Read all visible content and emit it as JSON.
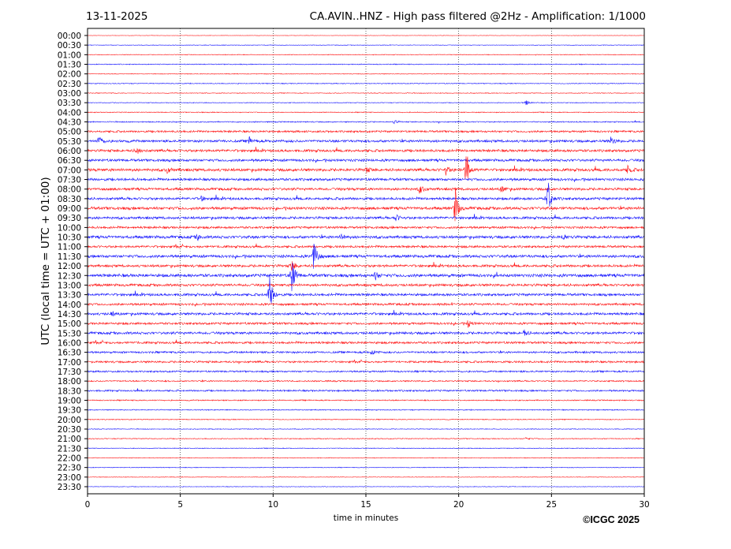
{
  "header": {
    "date": "13-11-2025",
    "title": "CA.AVIN..HNZ - High pass filtered @2Hz - Amplification: 1/1000"
  },
  "footer": {
    "copyright": "©ICGC 2025"
  },
  "chart_data": {
    "type": "line",
    "title": "CA.AVIN..HNZ - High pass filtered @2Hz - Amplification: 1/1000",
    "xlabel": "time in minutes",
    "ylabel": "UTC (local time = UTC + 01:00)",
    "xlim": [
      0,
      30
    ],
    "xticks": [
      "0",
      "5",
      "10",
      "15",
      "20",
      "25",
      "30"
    ],
    "grid": "vertical dotted",
    "colors": [
      "#ff0000",
      "#0000ff"
    ],
    "rows": [
      "00:00",
      "00:30",
      "01:00",
      "01:30",
      "02:00",
      "02:30",
      "03:00",
      "03:30",
      "04:00",
      "04:30",
      "05:00",
      "05:30",
      "06:00",
      "06:30",
      "07:00",
      "07:30",
      "08:00",
      "08:30",
      "09:00",
      "09:30",
      "10:00",
      "10:30",
      "11:00",
      "11:30",
      "12:00",
      "12:30",
      "13:00",
      "13:30",
      "14:00",
      "14:30",
      "15:00",
      "15:30",
      "16:00",
      "16:30",
      "17:00",
      "17:30",
      "18:00",
      "18:30",
      "19:00",
      "19:30",
      "20:00",
      "20:30",
      "21:00",
      "21:30",
      "22:00",
      "22:30",
      "23:00",
      "23:30"
    ],
    "noise_level": [
      0.3,
      0.4,
      0.5,
      0.6,
      0.5,
      0.6,
      0.5,
      0.5,
      0.6,
      0.8,
      1.4,
      1.8,
      1.8,
      1.8,
      2.0,
      1.8,
      1.8,
      1.8,
      2.0,
      1.8,
      1.6,
      2.0,
      1.6,
      2.0,
      1.8,
      2.2,
      1.8,
      1.8,
      1.6,
      1.8,
      1.6,
      1.8,
      1.6,
      1.4,
      1.4,
      1.2,
      1.0,
      1.2,
      0.8,
      0.7,
      0.6,
      0.5,
      0.6,
      0.5,
      0.5,
      0.5,
      0.4,
      0.4
    ],
    "events": [
      {
        "row": "03:30",
        "minute": 23.6,
        "amplitude": 4
      },
      {
        "row": "04:30",
        "minute": 16.5,
        "amplitude": 2.5
      },
      {
        "row": "05:30",
        "minute": 0.6,
        "amplitude": 8
      },
      {
        "row": "05:30",
        "minute": 8.7,
        "amplitude": 5
      },
      {
        "row": "05:30",
        "minute": 28.2,
        "amplitude": 5
      },
      {
        "row": "06:00",
        "minute": 2.6,
        "amplitude": 6
      },
      {
        "row": "07:00",
        "minute": 20.4,
        "amplitude": 30
      },
      {
        "row": "07:00",
        "minute": 19.3,
        "amplitude": 6
      },
      {
        "row": "07:00",
        "minute": 4.3,
        "amplitude": 4
      },
      {
        "row": "07:00",
        "minute": 15.0,
        "amplitude": 4
      },
      {
        "row": "07:00",
        "minute": 29.1,
        "amplitude": 5
      },
      {
        "row": "08:00",
        "minute": 17.9,
        "amplitude": 6
      },
      {
        "row": "08:00",
        "minute": 22.3,
        "amplitude": 5
      },
      {
        "row": "08:30",
        "minute": 24.8,
        "amplitude": 30
      },
      {
        "row": "08:30",
        "minute": 6.1,
        "amplitude": 4
      },
      {
        "row": "09:00",
        "minute": 19.8,
        "amplitude": 30
      },
      {
        "row": "09:30",
        "minute": 16.6,
        "amplitude": 5
      },
      {
        "row": "10:30",
        "minute": 5.9,
        "amplitude": 4
      },
      {
        "row": "10:30",
        "minute": 13.7,
        "amplitude": 5
      },
      {
        "row": "10:30",
        "minute": 25.6,
        "amplitude": 4
      },
      {
        "row": "11:30",
        "minute": 12.2,
        "amplitude": 28
      },
      {
        "row": "12:00",
        "minute": 11.0,
        "amplitude": 8
      },
      {
        "row": "12:30",
        "minute": 11.0,
        "amplitude": 30
      },
      {
        "row": "12:30",
        "minute": 15.5,
        "amplitude": 5
      },
      {
        "row": "13:30",
        "minute": 9.8,
        "amplitude": 30
      },
      {
        "row": "14:30",
        "minute": 1.3,
        "amplitude": 3
      },
      {
        "row": "15:00",
        "minute": 20.5,
        "amplitude": 5
      },
      {
        "row": "15:30",
        "minute": 23.5,
        "amplitude": 5
      },
      {
        "row": "16:30",
        "minute": 15.3,
        "amplitude": 4
      },
      {
        "row": "21:00",
        "minute": 23.6,
        "amplitude": 2
      }
    ]
  }
}
